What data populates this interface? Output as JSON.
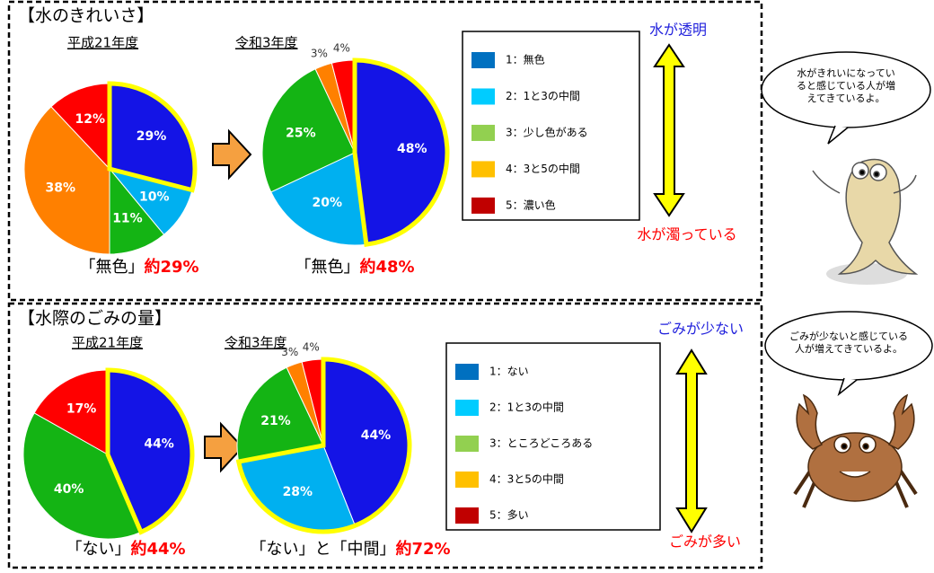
{
  "panels": [
    {
      "title": "【水のきれいさ】",
      "top_label": "水が透明",
      "bottom_label": "水が濁っている",
      "legend": [
        {
          "name": "1：無色",
          "color": "#0070c0"
        },
        {
          "name": "2：1と3の中間",
          "color": "#00ccff"
        },
        {
          "name": "3：少し色がある",
          "color": "#92d050"
        },
        {
          "name": "4：3と5の中間",
          "color": "#ffc000"
        },
        {
          "name": "5：濃い色",
          "color": "#c00000"
        }
      ],
      "bubble": [
        "水がきれいになってい",
        "ると感じている人が増",
        "えてきているよ。"
      ],
      "charts": [
        {
          "type": "pie",
          "title": "平成21年度",
          "values": [
            29,
            10,
            11,
            38,
            12
          ],
          "value_labels": [
            "29%",
            "10%",
            "11%",
            "38%",
            "12%"
          ],
          "colors": [
            "#1414e6",
            "#00b0f0",
            "#14b414",
            "#ff8000",
            "#ff0000"
          ],
          "highlight": [
            0
          ],
          "caption": "「無色」",
          "caption_value": "約29%"
        },
        {
          "type": "pie",
          "title": "令和3年度",
          "values": [
            48,
            20,
            25,
            3,
            4
          ],
          "value_labels": [
            "48%",
            "20%",
            "25%",
            "3%",
            "4%"
          ],
          "colors": [
            "#1414e6",
            "#00b0f0",
            "#14b414",
            "#ff8000",
            "#ff0000"
          ],
          "highlight": [
            0
          ],
          "caption": "「無色」",
          "caption_value": "約48%"
        }
      ]
    },
    {
      "title": "【水際のごみの量】",
      "top_label": "ごみが少ない",
      "bottom_label": "ごみが多い",
      "legend": [
        {
          "name": "1：ない",
          "color": "#0070c0"
        },
        {
          "name": "2：1と3の中間",
          "color": "#00ccff"
        },
        {
          "name": "3：ところどころある",
          "color": "#92d050"
        },
        {
          "name": "4：3と5の中間",
          "color": "#ffc000"
        },
        {
          "name": "5：多い",
          "color": "#c00000"
        }
      ],
      "bubble": [
        "ごみが少ないと感じている",
        "人が増えてきているよ。"
      ],
      "charts": [
        {
          "type": "pie",
          "title": "平成21年度",
          "values": [
            44,
            40,
            17
          ],
          "value_labels": [
            "44%",
            "40%",
            "17%"
          ],
          "colors": [
            "#1414e6",
            "#14b414",
            "#ff0000"
          ],
          "highlight": [
            0
          ],
          "caption": "「ない」",
          "caption_value": "約44%"
        },
        {
          "type": "pie",
          "title": "令和3年度",
          "values": [
            44,
            28,
            21,
            3,
            4
          ],
          "value_labels": [
            "44%",
            "28%",
            "21%",
            "3%",
            "4%"
          ],
          "colors": [
            "#1414e6",
            "#00b0f0",
            "#14b414",
            "#ff8000",
            "#ff0000"
          ],
          "highlight": [
            0,
            1
          ],
          "caption": "「ない」と「中間」",
          "caption_value": "約72%"
        }
      ]
    }
  ]
}
